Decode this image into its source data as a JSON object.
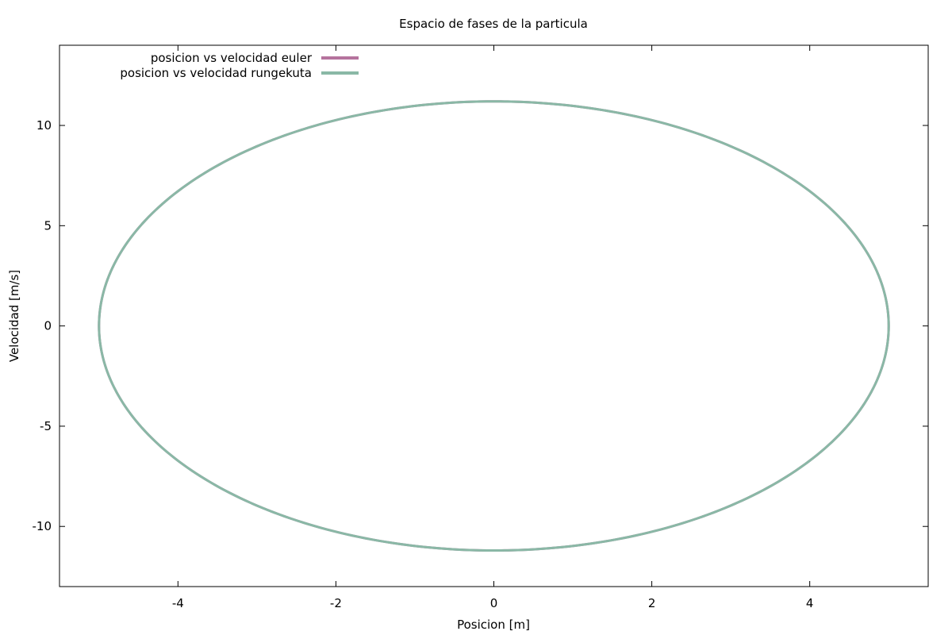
{
  "chart_data": {
    "type": "line",
    "title": "Espacio de fases de la particula",
    "xlabel": "Posicion [m]",
    "ylabel": "Velocidad [m/s]",
    "xlim": [
      -5.5,
      5.5
    ],
    "ylim": [
      -13,
      14
    ],
    "xticks": [
      -4,
      -2,
      0,
      2,
      4
    ],
    "yticks": [
      -10,
      -5,
      0,
      5,
      10
    ],
    "xtick_labels": [
      "-4",
      "-2",
      "0",
      "2",
      "4"
    ],
    "ytick_labels": [
      "-10",
      "-5",
      "0",
      "5",
      "10"
    ],
    "grid": false,
    "legend_position": "top-left",
    "series": [
      {
        "name": "posicion vs velocidad euler",
        "color": "#b5739d",
        "curve": "ellipse",
        "x_amplitude": 5.0,
        "y_amplitude": 11.2,
        "points": [
          [
            5.0,
            0.0
          ],
          [
            0.0,
            11.2
          ],
          [
            -5.0,
            0.0
          ],
          [
            0.0,
            -11.2
          ]
        ]
      },
      {
        "name": "posicion vs velocidad rungekuta",
        "color": "#8ab8a6",
        "curve": "ellipse",
        "x_amplitude": 5.0,
        "y_amplitude": 11.2,
        "points": [
          [
            5.0,
            0.0
          ],
          [
            0.0,
            11.2
          ],
          [
            -5.0,
            0.0
          ],
          [
            0.0,
            -11.2
          ]
        ]
      }
    ]
  }
}
